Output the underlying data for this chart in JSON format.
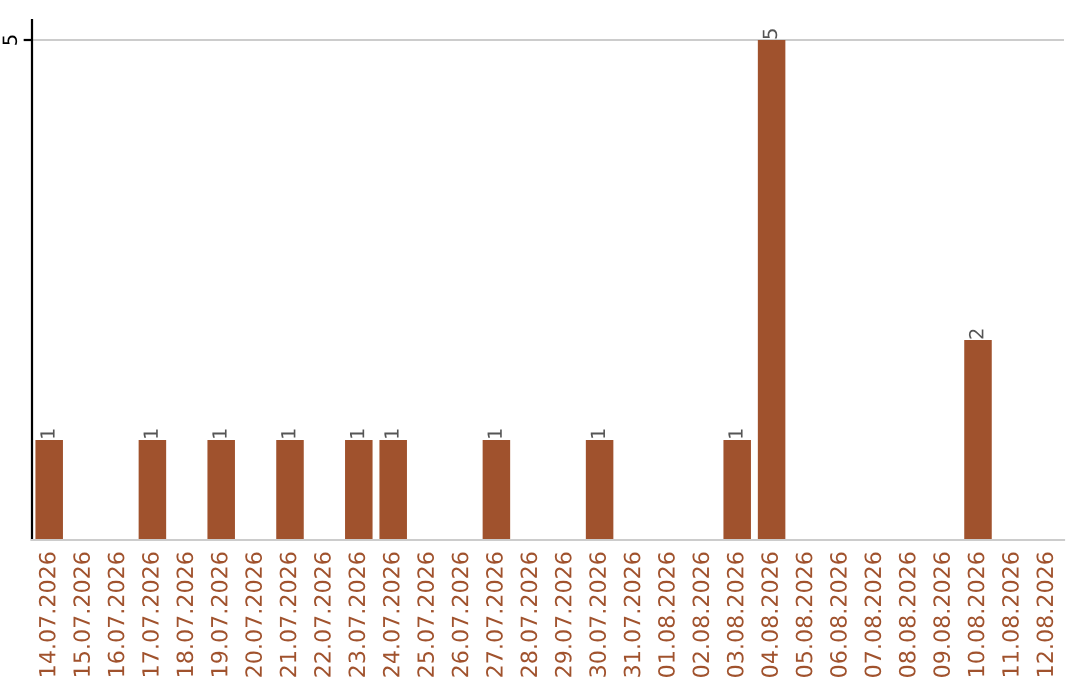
{
  "chart_data": {
    "type": "bar",
    "categories": [
      "14.07.2026",
      "15.07.2026",
      "16.07.2026",
      "17.07.2026",
      "18.07.2026",
      "19.07.2026",
      "20.07.2026",
      "21.07.2026",
      "22.07.2026",
      "23.07.2026",
      "24.07.2026",
      "25.07.2026",
      "26.07.2026",
      "27.07.2026",
      "28.07.2026",
      "29.07.2026",
      "30.07.2026",
      "31.07.2026",
      "01.08.2026",
      "02.08.2026",
      "03.08.2026",
      "04.08.2026",
      "05.08.2026",
      "06.08.2026",
      "07.08.2026",
      "08.08.2026",
      "09.08.2026",
      "10.08.2026",
      "11.08.2026",
      "12.08.2026"
    ],
    "values": [
      1,
      0,
      0,
      1,
      0,
      1,
      0,
      1,
      0,
      1,
      1,
      0,
      0,
      1,
      0,
      0,
      1,
      0,
      0,
      0,
      1,
      5,
      0,
      0,
      0,
      0,
      0,
      2,
      0,
      0
    ],
    "value_labels": [
      "1",
      null,
      null,
      "1",
      null,
      "1",
      null,
      "1",
      null,
      "1",
      "1",
      null,
      null,
      "1",
      null,
      null,
      "1",
      null,
      null,
      null,
      "1",
      "5",
      null,
      null,
      null,
      null,
      null,
      "2",
      null,
      null
    ],
    "color": "#a0522d",
    "ylim": [
      0,
      5.2
    ],
    "yticks": [
      5
    ],
    "grid": "y"
  }
}
